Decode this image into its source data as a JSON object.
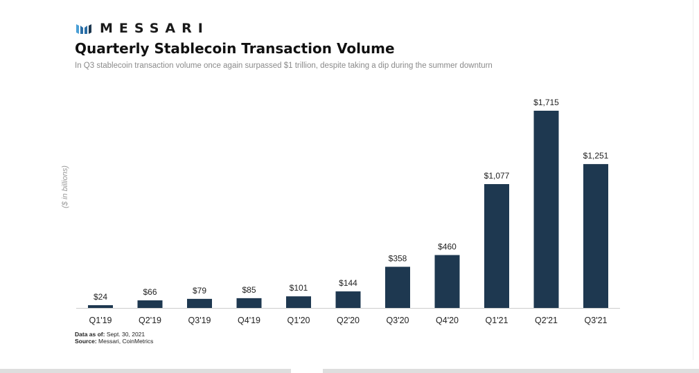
{
  "brand": {
    "name": "MESSARI"
  },
  "colors": {
    "bar": "#1e3850",
    "brand_mark": "#2a6ea6",
    "axis": "#cccccc"
  },
  "chart_data": {
    "type": "bar",
    "title": "Quarterly Stablecoin Transaction Volume",
    "subtitle": "In Q3 stablecoin transaction volume once again surpassed $1 trillion, despite taking a dip during the summer downturn",
    "ylabel": "($ in billions)",
    "xlabel": "",
    "categories": [
      "Q1'19",
      "Q2'19",
      "Q3'19",
      "Q4'19",
      "Q1'20",
      "Q2'20",
      "Q3'20",
      "Q4'20",
      "Q1'21",
      "Q2'21",
      "Q3'21"
    ],
    "values": [
      24,
      66,
      79,
      85,
      101,
      144,
      358,
      460,
      1077,
      1715,
      1251
    ],
    "data_labels": [
      "$24",
      "$66",
      "$79",
      "$85",
      "$101",
      "$144",
      "$358",
      "$460",
      "$1,077",
      "$1,715",
      "$1,251"
    ],
    "ylim": [
      0,
      1715
    ],
    "grid": false,
    "legend": "none"
  },
  "footer": {
    "data_as_of_label": "Data as of:",
    "data_as_of_value": "Sept. 30, 2021",
    "source_label": "Source:",
    "source_value": "Messari,  CoinMetrics"
  }
}
